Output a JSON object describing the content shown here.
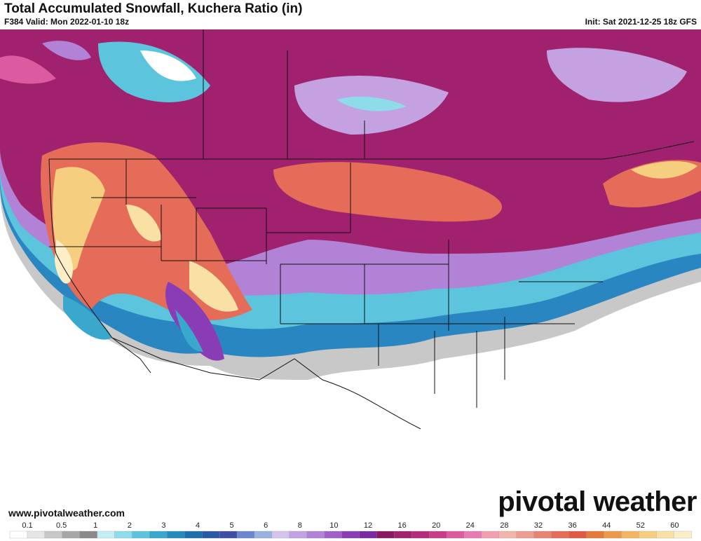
{
  "header": {
    "title": "Total Accumulated Snowfall, Kuchera Ratio (in)",
    "valid": "F384 Valid: Mon 2022-01-10 18z",
    "init": "Init: Sat 2021-12-25 18z GFS"
  },
  "footer": {
    "website": "www.pivotalweather.com",
    "logo": "pivotal weather"
  },
  "legend": {
    "ticks": [
      0.1,
      0.5,
      1,
      2,
      3,
      4,
      5,
      6,
      8,
      10,
      12,
      16,
      20,
      24,
      28,
      32,
      36,
      44,
      52,
      60
    ],
    "colors": [
      "#ffffff",
      "#e6e6e6",
      "#c8c8c8",
      "#a8a8a8",
      "#8a8a8a",
      "#c4eef4",
      "#8edcea",
      "#5cc4dc",
      "#3aa8cc",
      "#248cbc",
      "#1f6eac",
      "#2a5aa6",
      "#3f4ea2",
      "#6a86cc",
      "#9ab2de",
      "#d4c4ec",
      "#c4a2e2",
      "#b282d6",
      "#a060c8",
      "#8a3cb4",
      "#7a2aa2",
      "#8a1860",
      "#a0226e",
      "#b42c7c",
      "#c83c8a",
      "#dc5aa0",
      "#e87cb2",
      "#f0a0b0",
      "#f0b4a8",
      "#ec9c90",
      "#e88474",
      "#e46c58",
      "#de5a44",
      "#e47a3c",
      "#ec9a4a",
      "#f2b660",
      "#f6ce80",
      "#f9e0a4",
      "#fcefc8"
    ]
  }
}
